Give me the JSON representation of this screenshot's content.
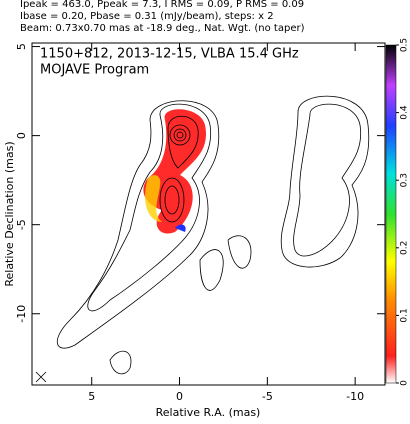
{
  "chart_data": {
    "type": "contour",
    "header": [
      "Ipeak = 463.0, Ppeak = 7.3, I RMS = 0.09, P RMS = 0.09",
      "Ibase = 0.20, Pbase = 0.31 (mJy/beam), steps: x 2",
      "Beam: 0.73x0.70 mas at -18.9 deg., Nat. Wgt. (no taper)"
    ],
    "title": "1150+812, 2013-12-15, VLBA 15.4 GHz",
    "subtitle": "MOJAVE Program",
    "xlabel": "Relative R.A. (mas)",
    "ylabel": "Relative Declination (mas)",
    "xlim": [
      8.4,
      -11.7
    ],
    "xticks": [
      5,
      0,
      -5,
      -10
    ],
    "ylim": [
      -14,
      5.2
    ],
    "yticks": [
      5,
      0,
      -5,
      -10
    ],
    "colorbar": {
      "lim": [
        0,
        0.5
      ],
      "ticks": [
        0,
        0.1,
        0.2,
        0.3,
        0.4,
        0.5
      ]
    }
  }
}
